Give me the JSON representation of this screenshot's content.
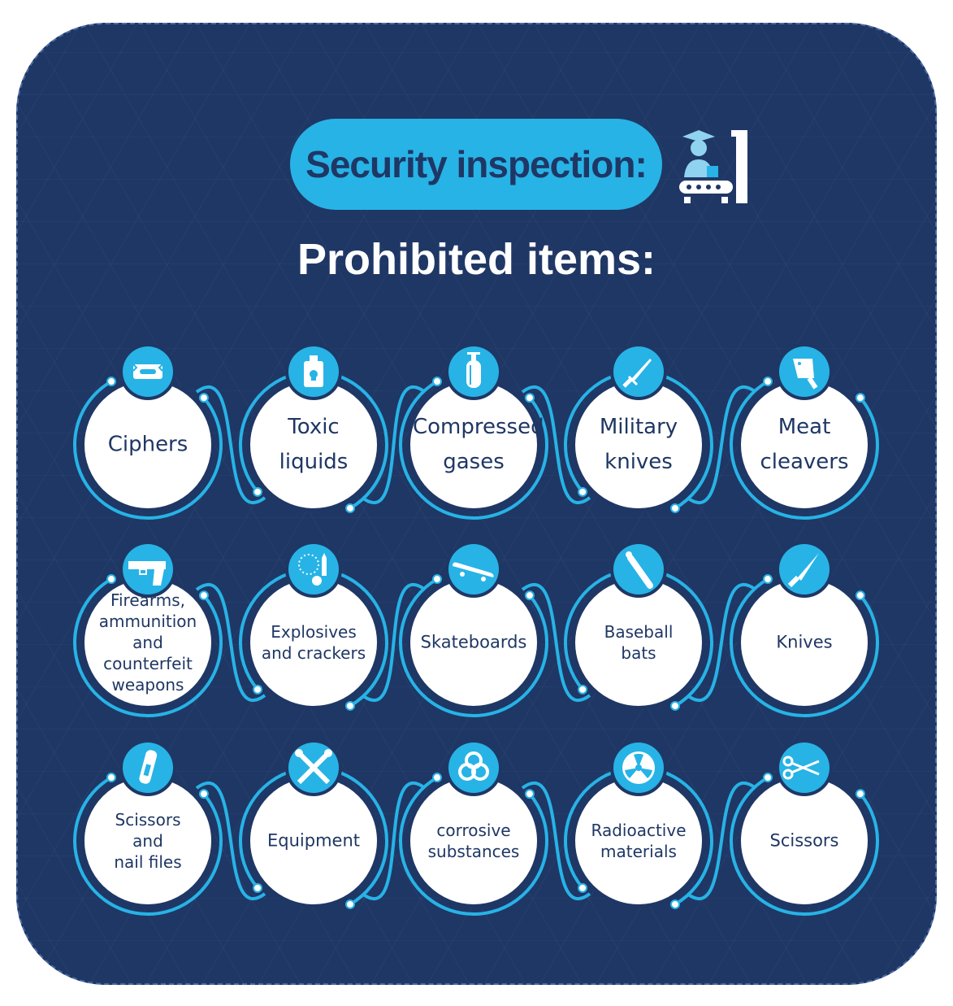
{
  "header": {
    "title": "Security inspection:",
    "subtitle": "Prohibited items:"
  },
  "colors": {
    "background": "#1f3765",
    "accent": "#27b3e6",
    "circle": "#ffffff",
    "text_dark": "#1f3765"
  },
  "items": [
    {
      "label": "Ciphers",
      "icon": "razor-blade-icon"
    },
    {
      "label": "Toxic liquids",
      "icon": "poison-bottle-icon"
    },
    {
      "label": "Compressed gases",
      "icon": "gas-cylinder-icon"
    },
    {
      "label": "Military knives",
      "icon": "combat-knife-icon"
    },
    {
      "label": "Meat cleavers",
      "icon": "cleaver-icon"
    },
    {
      "label": "Firearms, ammunition and counterfeit weapons",
      "icon": "pistol-icon"
    },
    {
      "label": "Explosives and crackers",
      "icon": "firework-icon"
    },
    {
      "label": "Skateboards",
      "icon": "skateboard-icon"
    },
    {
      "label": "Baseball bats",
      "icon": "baseball-bat-icon"
    },
    {
      "label": "Knives",
      "icon": "kitchen-knife-icon"
    },
    {
      "label": "Scissors and nail files",
      "icon": "nail-clipper-icon"
    },
    {
      "label": "Equipment",
      "icon": "tools-icon"
    },
    {
      "label": "corrosive substances",
      "icon": "biohazard-icon"
    },
    {
      "label": "Radioactive materials",
      "icon": "radiation-icon"
    },
    {
      "label": "Scissors",
      "icon": "scissors-icon"
    }
  ]
}
